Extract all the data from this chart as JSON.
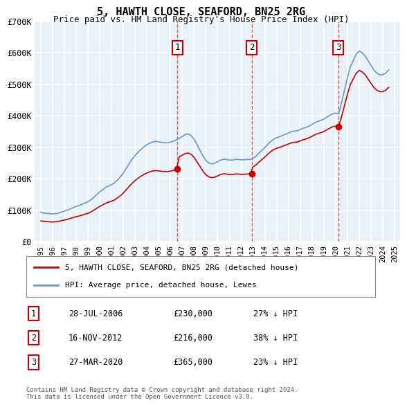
{
  "title": "5, HAWTH CLOSE, SEAFORD, BN25 2RG",
  "subtitle": "Price paid vs. HM Land Registry's House Price Index (HPI)",
  "ylabel": "",
  "ylim": [
    0,
    700000
  ],
  "yticks": [
    0,
    100000,
    200000,
    300000,
    400000,
    500000,
    600000,
    700000
  ],
  "ytick_labels": [
    "£0",
    "£100K",
    "£200K",
    "£300K",
    "£400K",
    "£500K",
    "£600K",
    "£700K"
  ],
  "background_color": "#ffffff",
  "plot_bg_color": "#e8f0f8",
  "grid_color": "#ffffff",
  "transactions": [
    {
      "date_num": 2006.57,
      "price": 230000,
      "label": "1",
      "date_str": "28-JUL-2006",
      "pct": "27% ↓ HPI"
    },
    {
      "date_num": 2012.88,
      "price": 216000,
      "label": "2",
      "date_str": "16-NOV-2012",
      "pct": "38% ↓ HPI"
    },
    {
      "date_num": 2020.23,
      "price": 365000,
      "label": "3",
      "date_str": "27-MAR-2020",
      "pct": "23% ↓ HPI"
    }
  ],
  "hpi_x": [
    1995.0,
    1995.25,
    1995.5,
    1995.75,
    1996.0,
    1996.25,
    1996.5,
    1996.75,
    1997.0,
    1997.25,
    1997.5,
    1997.75,
    1998.0,
    1998.25,
    1998.5,
    1998.75,
    1999.0,
    1999.25,
    1999.5,
    1999.75,
    2000.0,
    2000.25,
    2000.5,
    2000.75,
    2001.0,
    2001.25,
    2001.5,
    2001.75,
    2002.0,
    2002.25,
    2002.5,
    2002.75,
    2003.0,
    2003.25,
    2003.5,
    2003.75,
    2004.0,
    2004.25,
    2004.5,
    2004.75,
    2005.0,
    2005.25,
    2005.5,
    2005.75,
    2006.0,
    2006.25,
    2006.5,
    2006.75,
    2007.0,
    2007.25,
    2007.5,
    2007.75,
    2008.0,
    2008.25,
    2008.5,
    2008.75,
    2009.0,
    2009.25,
    2009.5,
    2009.75,
    2010.0,
    2010.25,
    2010.5,
    2010.75,
    2011.0,
    2011.25,
    2011.5,
    2011.75,
    2012.0,
    2012.25,
    2012.5,
    2012.75,
    2013.0,
    2013.25,
    2013.5,
    2013.75,
    2014.0,
    2014.25,
    2014.5,
    2014.75,
    2015.0,
    2015.25,
    2015.5,
    2015.75,
    2016.0,
    2016.25,
    2016.5,
    2016.75,
    2017.0,
    2017.25,
    2017.5,
    2017.75,
    2018.0,
    2018.25,
    2018.5,
    2018.75,
    2019.0,
    2019.25,
    2019.5,
    2019.75,
    2020.0,
    2020.25,
    2020.5,
    2020.75,
    2021.0,
    2021.25,
    2021.5,
    2021.75,
    2022.0,
    2022.25,
    2022.5,
    2022.75,
    2023.0,
    2023.25,
    2023.5,
    2023.75,
    2024.0,
    2024.25,
    2024.5
  ],
  "hpi_y": [
    93000,
    91000,
    90000,
    89000,
    88000,
    89000,
    91000,
    94000,
    97000,
    100000,
    104000,
    108000,
    112000,
    115000,
    119000,
    123000,
    127000,
    133000,
    141000,
    150000,
    158000,
    165000,
    172000,
    177000,
    181000,
    187000,
    196000,
    206000,
    218000,
    233000,
    248000,
    262000,
    274000,
    284000,
    293000,
    301000,
    308000,
    313000,
    317000,
    318000,
    317000,
    315000,
    314000,
    314000,
    316000,
    319000,
    323000,
    328000,
    334000,
    340000,
    342000,
    337000,
    325000,
    308000,
    290000,
    272000,
    258000,
    250000,
    247000,
    249000,
    254000,
    259000,
    262000,
    261000,
    259000,
    259000,
    261000,
    261000,
    260000,
    260000,
    261000,
    261000,
    264000,
    271000,
    281000,
    290000,
    299000,
    309000,
    318000,
    325000,
    330000,
    333000,
    337000,
    341000,
    345000,
    349000,
    351000,
    352000,
    356000,
    360000,
    363000,
    367000,
    372000,
    378000,
    382000,
    385000,
    389000,
    395000,
    401000,
    406000,
    408000,
    406000,
    440000,
    480000,
    520000,
    555000,
    575000,
    595000,
    605000,
    600000,
    590000,
    575000,
    560000,
    545000,
    535000,
    530000,
    530000,
    535000,
    545000
  ],
  "sale_line_color": "#cc0000",
  "hpi_line_color": "#6699cc",
  "marker_color": "#cc0000",
  "vline_color": "#cc0000",
  "transaction_vline_color": "#dd4444",
  "legend_label_sale": "5, HAWTH CLOSE, SEAFORD, BN25 2RG (detached house)",
  "legend_label_hpi": "HPI: Average price, detached house, Lewes",
  "footer": "Contains HM Land Registry data © Crown copyright and database right 2024.\nThis data is licensed under the Open Government Licence v3.0.",
  "xlim": [
    1994.5,
    2025.5
  ],
  "xtick_years": [
    1995,
    1996,
    1997,
    1998,
    1999,
    2000,
    2001,
    2002,
    2003,
    2004,
    2005,
    2006,
    2007,
    2008,
    2009,
    2010,
    2011,
    2012,
    2013,
    2014,
    2015,
    2016,
    2017,
    2018,
    2019,
    2020,
    2021,
    2022,
    2023,
    2024,
    2025
  ]
}
